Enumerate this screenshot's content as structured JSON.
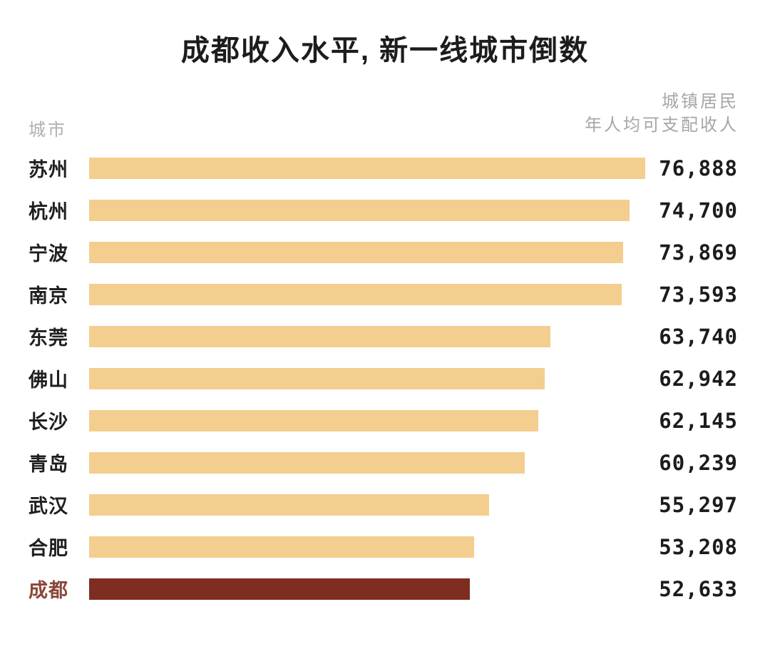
{
  "title": "成都收入水平, 新一线城市倒数",
  "headers": {
    "city": "城市",
    "value_line1": "城镇居民",
    "value_line2": "年人均可支配收人"
  },
  "colors": {
    "bar": "#F3CE8E",
    "highlight_bar": "#7E2D21",
    "highlight_label": "#8A4638",
    "header_gray": "#B2AFAC",
    "text": "#1C1C1C",
    "background": "#FFFFFF"
  },
  "chart_data": {
    "type": "bar",
    "orientation": "horizontal",
    "title": "成都收入水平, 新一线城市倒数",
    "xlabel": "城镇居民年人均可支配收人",
    "ylabel": "城市",
    "categories": [
      "苏州",
      "杭州",
      "宁波",
      "南京",
      "东莞",
      "佛山",
      "长沙",
      "青岛",
      "武汉",
      "合肥",
      "成都"
    ],
    "values": [
      76888,
      74700,
      73869,
      73593,
      63740,
      62942,
      62145,
      60239,
      55297,
      53208,
      52633
    ],
    "value_labels": [
      "76,888",
      "74,700",
      "73,869",
      "73,593",
      "63,740",
      "62,942",
      "62,145",
      "60,239",
      "55,297",
      "53,208",
      "52,633"
    ],
    "highlight_category": "成都",
    "xlim": [
      0,
      76888
    ],
    "grid": false,
    "legend": "none",
    "bars_sorted": "descending"
  }
}
